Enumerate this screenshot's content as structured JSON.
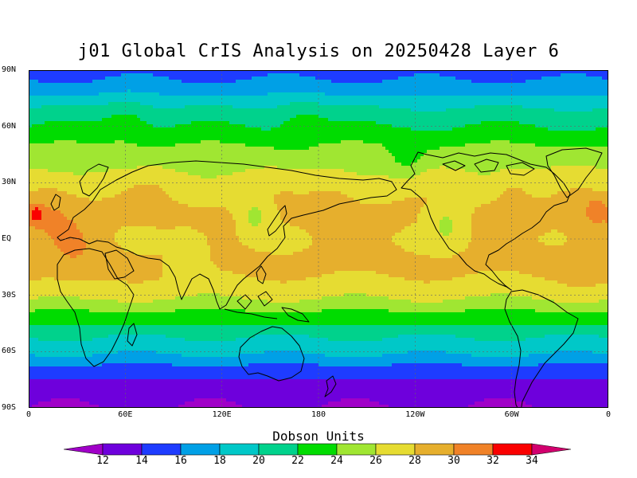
{
  "title": "j01 Global CrIS Analysis on 20250428 Layer 6",
  "colorbar": {
    "title": "Dobson Units",
    "levels": [
      12,
      14,
      16,
      18,
      20,
      22,
      24,
      26,
      28,
      30,
      32,
      34
    ],
    "level_labels": [
      "12",
      "14",
      "16",
      "18",
      "20",
      "22",
      "24",
      "26",
      "28",
      "30",
      "32",
      "34"
    ],
    "colors": [
      "#a000c8",
      "#6e00dc",
      "#1e3cff",
      "#00a0e6",
      "#00c8c8",
      "#00d28c",
      "#00dc00",
      "#a0e632",
      "#e6dc32",
      "#e6af2d",
      "#f08228",
      "#fa0000",
      "#d2006e"
    ]
  },
  "axes": {
    "lat_labels": [
      "90N",
      "60N",
      "30N",
      "EQ",
      "30S",
      "60S",
      "90S"
    ],
    "lat_values": [
      90,
      60,
      30,
      0,
      -30,
      -60,
      -90
    ],
    "lon_labels": [
      "0",
      "60E",
      "120E",
      "180",
      "120W",
      "60W",
      "0"
    ],
    "lon_values": [
      0,
      60,
      120,
      180,
      240,
      300,
      360
    ],
    "grid": true
  },
  "chart_data": {
    "type": "heatmap",
    "title": "j01 Global CrIS Analysis on 20250428 Layer 6",
    "xlabel": "",
    "ylabel": "",
    "colorbar_label": "Dobson Units",
    "x_range": [
      0,
      360
    ],
    "y_range": [
      -90,
      90
    ],
    "zonal_profile": {
      "lat": [
        90,
        80,
        70,
        60,
        50,
        40,
        30,
        20,
        10,
        0,
        -10,
        -20,
        -30,
        -40,
        -50,
        -60,
        -70,
        -80,
        -90
      ],
      "value": [
        15,
        17,
        20,
        22,
        24,
        25.5,
        27,
        28,
        28.5,
        28,
        28.5,
        28,
        26.5,
        23.5,
        20.5,
        18.5,
        15,
        13,
        12
      ]
    },
    "features": [
      {
        "lon": 5,
        "lat": 13,
        "value": 33,
        "radius": 5
      },
      {
        "lon": 352,
        "lat": 15,
        "value": 32,
        "radius": 6
      },
      {
        "lon": 30,
        "lat": -5,
        "value": 30,
        "radius": 18
      },
      {
        "lon": 15,
        "lat": 15,
        "value": 30,
        "radius": 14
      },
      {
        "lon": 350,
        "lat": -3,
        "value": 29.5,
        "radius": 18
      },
      {
        "lon": 300,
        "lat": 22,
        "value": 29,
        "radius": 12
      },
      {
        "lon": 190,
        "lat": 17,
        "value": 29,
        "radius": 15
      },
      {
        "lon": 75,
        "lat": 18,
        "value": 28.5,
        "radius": 12
      },
      {
        "lon": 100,
        "lat": -8,
        "value": 25.5,
        "radius": 12
      },
      {
        "lon": 140,
        "lat": 12,
        "value": 25,
        "radius": 10
      },
      {
        "lon": 260,
        "lat": 8,
        "value": 25.5,
        "radius": 12
      },
      {
        "lon": 235,
        "lat": 45,
        "value": 23,
        "radius": 12
      },
      {
        "lon": 60,
        "lat": 55,
        "value": 24.5,
        "radius": 15
      },
      {
        "lon": 170,
        "lat": 55,
        "value": 24,
        "radius": 15
      }
    ]
  }
}
